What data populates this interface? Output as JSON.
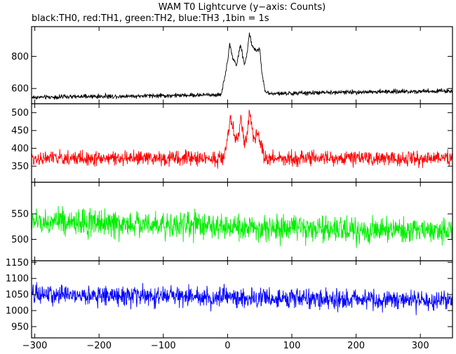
{
  "chart_data": {
    "type": "line",
    "title": "WAM T0 Lightcurve (y−axis: Counts)",
    "subtitle": "black:TH0, red:TH1, green:TH2, blue:TH3 ,1bin = 1s",
    "x_range": [
      -305,
      350
    ],
    "x_ticks": [
      -300,
      -200,
      -100,
      0,
      100,
      200,
      300
    ],
    "x_tick_labels": [
      "−300",
      "−200",
      "−100",
      "0",
      "100",
      "200",
      "300"
    ],
    "panels": [
      {
        "series": "TH0",
        "color": "#000000",
        "ylim": [
          505,
          985
        ],
        "y_ticks": [
          600,
          800
        ],
        "y_tick_labels": [
          "600",
          "800"
        ],
        "baseline": [
          [
            -305,
            545
          ],
          [
            -100,
            555
          ],
          [
            0,
            562
          ],
          [
            100,
            570
          ],
          [
            200,
            578
          ],
          [
            350,
            585
          ]
        ],
        "noise_amplitude": 20,
        "burst": [
          [
            -10,
            0
          ],
          [
            0,
            200
          ],
          [
            3,
            320
          ],
          [
            8,
            230
          ],
          [
            14,
            180
          ],
          [
            20,
            310
          ],
          [
            26,
            190
          ],
          [
            30,
            240
          ],
          [
            34,
            380
          ],
          [
            38,
            300
          ],
          [
            44,
            270
          ],
          [
            50,
            280
          ],
          [
            54,
            120
          ],
          [
            58,
            20
          ],
          [
            65,
            0
          ]
        ]
      },
      {
        "series": "TH1",
        "color": "#ff0000",
        "ylim": [
          305,
          525
        ],
        "y_ticks": [
          350,
          400,
          450,
          500
        ],
        "y_tick_labels": [
          "350",
          "400",
          "450",
          "500"
        ],
        "baseline": [
          [
            -305,
            372
          ],
          [
            350,
            372
          ]
        ],
        "noise_amplitude": 30,
        "burst": [
          [
            -6,
            0
          ],
          [
            0,
            60
          ],
          [
            4,
            110
          ],
          [
            10,
            70
          ],
          [
            16,
            50
          ],
          [
            21,
            120
          ],
          [
            26,
            40
          ],
          [
            30,
            55
          ],
          [
            34,
            130
          ],
          [
            40,
            60
          ],
          [
            46,
            70
          ],
          [
            52,
            40
          ],
          [
            56,
            10
          ],
          [
            62,
            0
          ]
        ]
      },
      {
        "series": "TH2",
        "color": "#00ee00",
        "ylim": [
          458,
          612
        ],
        "y_ticks": [
          500,
          550
        ],
        "y_tick_labels": [
          "500",
          "550"
        ],
        "baseline": [
          [
            -305,
            535
          ],
          [
            -100,
            530
          ],
          [
            100,
            520
          ],
          [
            350,
            515
          ]
        ],
        "noise_amplitude": 38,
        "burst": []
      },
      {
        "series": "TH3",
        "color": "#0000ff",
        "ylim": [
          915,
          1155
        ],
        "y_ticks": [
          950,
          1000,
          1050,
          1100,
          1150
        ],
        "y_tick_labels": [
          "950",
          "1000",
          "1050",
          "1100",
          "1150"
        ],
        "baseline": [
          [
            -305,
            1050
          ],
          [
            0,
            1040
          ],
          [
            350,
            1030
          ]
        ],
        "noise_amplitude": 45,
        "burst": []
      }
    ]
  }
}
